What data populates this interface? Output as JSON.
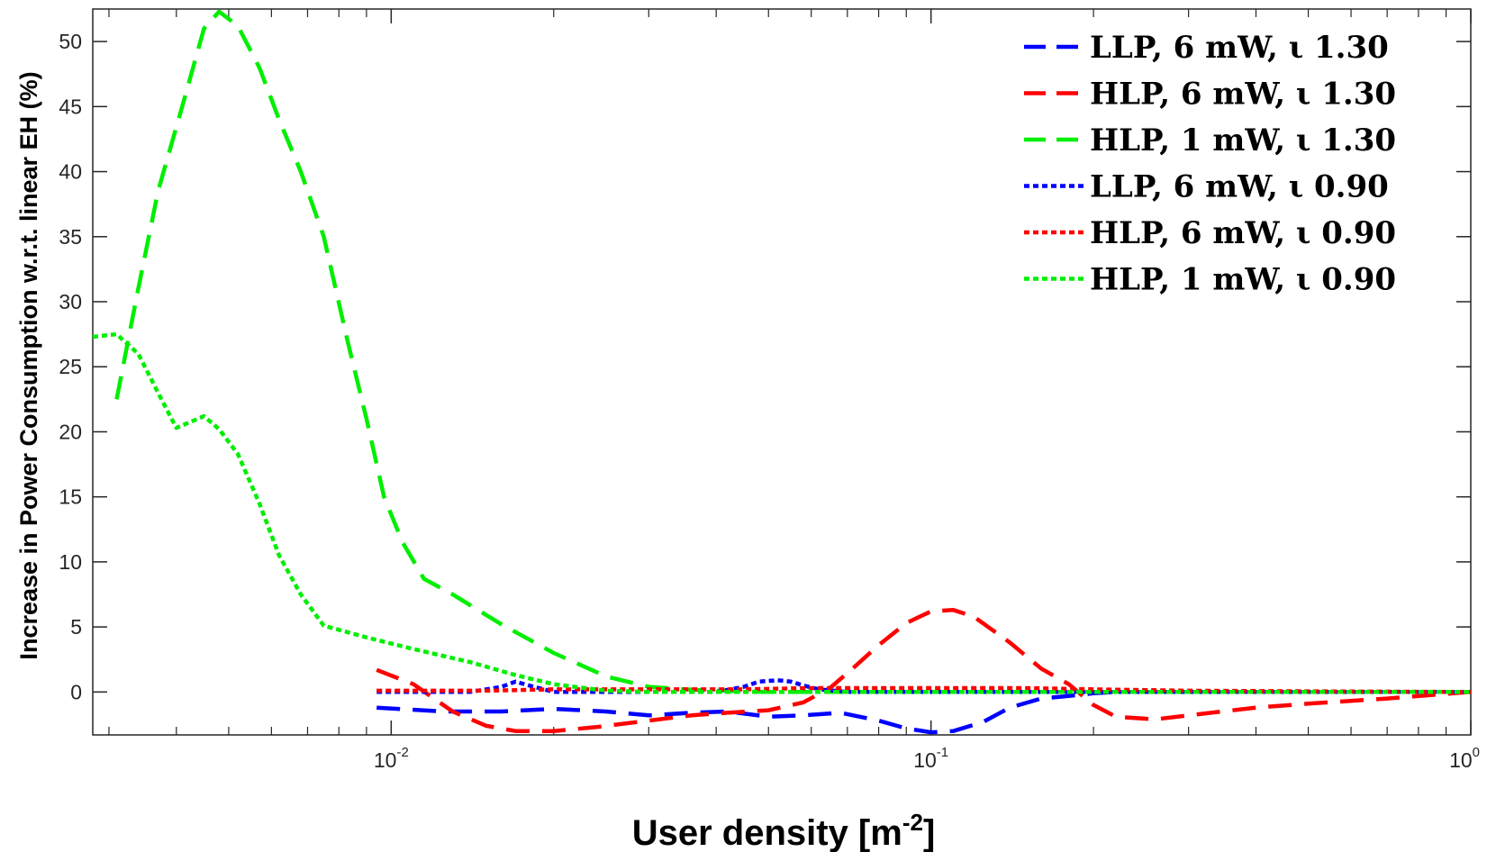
{
  "chart_data": {
    "type": "line",
    "title": "",
    "xlabel": {
      "text": "User density [m",
      "superscript": "-2",
      "suffix": "]"
    },
    "ylabel": "Increase in Power Consumption w.r.t. linear EH (%)",
    "xscale": "log",
    "xlim": [
      0.0028,
      1.0
    ],
    "ylim": [
      -3.3,
      52.5
    ],
    "xticks": [
      {
        "value": 0.01,
        "base": "10",
        "exp": "-2"
      },
      {
        "value": 0.1,
        "base": "10",
        "exp": "-1"
      },
      {
        "value": 1.0,
        "base": "10",
        "exp": "0"
      }
    ],
    "yticks": [
      {
        "value": 0,
        "label": "0"
      },
      {
        "value": 5,
        "label": "5"
      },
      {
        "value": 10,
        "label": "10"
      },
      {
        "value": 15,
        "label": "15"
      },
      {
        "value": 20,
        "label": "20"
      },
      {
        "value": 25,
        "label": "25"
      },
      {
        "value": 30,
        "label": "30"
      },
      {
        "value": 35,
        "label": "35"
      },
      {
        "value": 40,
        "label": "40"
      },
      {
        "value": 45,
        "label": "45"
      },
      {
        "value": 50,
        "label": "50"
      }
    ],
    "legend_position": "top-right",
    "series": [
      {
        "name": "LLP, 6 mW, ι 1.30",
        "color": "#0000ff",
        "style": "dashed",
        "x": [
          0.0094,
          0.0125,
          0.016,
          0.02,
          0.025,
          0.03,
          0.036,
          0.042,
          0.05,
          0.058,
          0.068,
          0.08,
          0.09,
          0.1,
          0.11,
          0.125,
          0.14,
          0.16,
          0.18,
          0.2,
          0.22,
          0.25,
          0.3,
          0.4,
          0.5,
          0.7,
          1.0
        ],
        "y": [
          -1.2,
          -1.5,
          -1.5,
          -1.3,
          -1.5,
          -1.8,
          -1.6,
          -1.5,
          -1.9,
          -1.8,
          -1.6,
          -2.2,
          -2.8,
          -3.1,
          -3.0,
          -2.3,
          -1.2,
          -0.5,
          -0.3,
          -0.1,
          0.0,
          0.0,
          0.0,
          0.0,
          0.0,
          0.0,
          0.0
        ]
      },
      {
        "name": "HLP, 6 mW, ι 1.30",
        "color": "#ff0000",
        "style": "dashed",
        "x": [
          0.0094,
          0.011,
          0.013,
          0.015,
          0.017,
          0.02,
          0.024,
          0.03,
          0.036,
          0.042,
          0.05,
          0.058,
          0.065,
          0.072,
          0.08,
          0.09,
          0.1,
          0.11,
          0.12,
          0.14,
          0.16,
          0.18,
          0.2,
          0.22,
          0.26,
          0.3,
          0.4,
          0.5,
          0.7,
          1.0
        ],
        "y": [
          1.7,
          0.6,
          -1.5,
          -2.6,
          -3.0,
          -3.0,
          -2.7,
          -2.2,
          -1.8,
          -1.6,
          -1.4,
          -0.8,
          0.3,
          1.9,
          3.6,
          5.3,
          6.2,
          6.3,
          5.8,
          3.8,
          1.8,
          0.6,
          -1.0,
          -1.9,
          -2.1,
          -1.8,
          -1.2,
          -0.9,
          -0.5,
          0.0
        ]
      },
      {
        "name": "HLP, 1 mW, ι 1.30",
        "color": "#00ee00",
        "style": "dashed",
        "x": [
          0.0031,
          0.0034,
          0.0037,
          0.0041,
          0.0045,
          0.0048,
          0.0052,
          0.0057,
          0.0062,
          0.0068,
          0.0075,
          0.0083,
          0.009,
          0.0097,
          0.0105,
          0.0115,
          0.013,
          0.016,
          0.02,
          0.025,
          0.03,
          0.035,
          0.04,
          0.05,
          0.07,
          1.0
        ],
        "y": [
          22.5,
          31.0,
          38.5,
          45.0,
          51.0,
          52.3,
          51.2,
          48.0,
          44.0,
          40.0,
          35.0,
          27.0,
          21.0,
          15.0,
          11.5,
          8.7,
          7.5,
          5.2,
          3.0,
          1.2,
          0.4,
          0.2,
          0.1,
          0.0,
          0.0,
          0.0
        ]
      },
      {
        "name": "LLP, 6 mW, ι 0.90",
        "color": "#0000ff",
        "style": "dotted",
        "x": [
          0.0094,
          0.014,
          0.016,
          0.017,
          0.018,
          0.02,
          0.03,
          0.04,
          0.045,
          0.048,
          0.052,
          0.055,
          0.058,
          0.062,
          0.07,
          0.1,
          0.2,
          0.4,
          1.0
        ],
        "y": [
          0.0,
          0.0,
          0.4,
          0.8,
          0.5,
          0.0,
          0.0,
          0.0,
          0.4,
          0.8,
          0.9,
          0.8,
          0.5,
          0.2,
          0.0,
          0.0,
          0.0,
          0.0,
          0.0
        ]
      },
      {
        "name": "HLP, 6 mW, ι 0.90",
        "color": "#ff0000",
        "style": "dotted",
        "x": [
          0.0094,
          0.015,
          0.02,
          0.03,
          0.045,
          0.06,
          0.08,
          0.1,
          0.12,
          0.15,
          0.2,
          0.3,
          0.5,
          1.0
        ],
        "y": [
          0.1,
          0.1,
          0.2,
          0.2,
          0.2,
          0.3,
          0.3,
          0.3,
          0.3,
          0.3,
          0.2,
          0.1,
          0.05,
          0.0
        ]
      },
      {
        "name": "HLP, 1 mW, ι 0.90",
        "color": "#00ee00",
        "style": "dotted",
        "x": [
          0.0028,
          0.0031,
          0.0034,
          0.0037,
          0.004,
          0.0045,
          0.0048,
          0.0052,
          0.0057,
          0.0062,
          0.0068,
          0.0075,
          0.009,
          0.011,
          0.014,
          0.017,
          0.02,
          0.025,
          0.03,
          1.0
        ],
        "y": [
          27.3,
          27.5,
          26.0,
          23.0,
          20.3,
          21.2,
          20.2,
          18.3,
          14.5,
          10.5,
          7.5,
          5.1,
          4.2,
          3.3,
          2.3,
          1.3,
          0.6,
          0.1,
          0.0,
          0.0
        ]
      }
    ]
  }
}
